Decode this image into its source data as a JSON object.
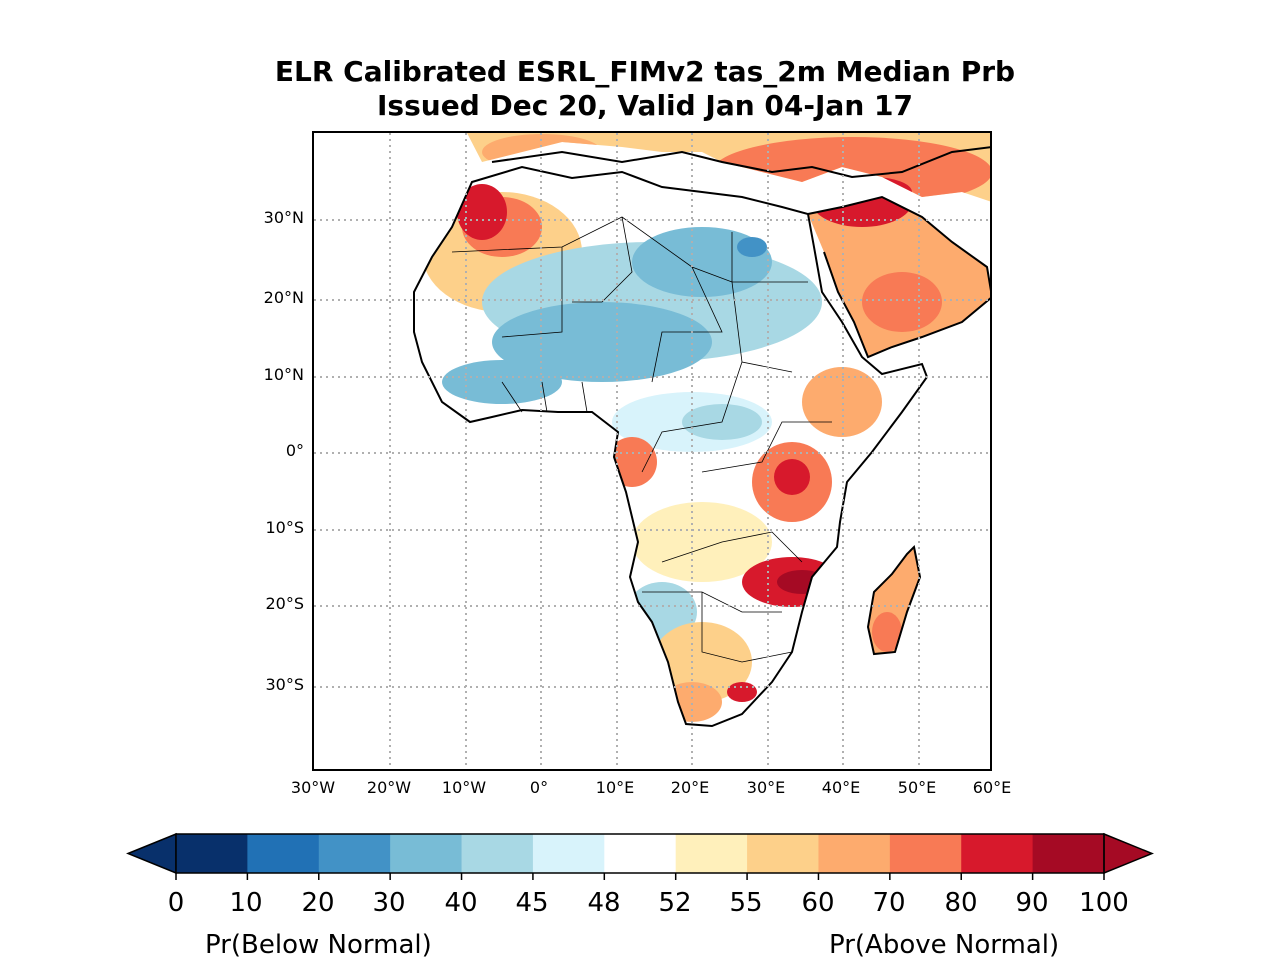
{
  "title": {
    "line1": "ELR Calibrated ESRL_FIMv2 tas_2m Median Prb",
    "line2": "Issued Dec 20, Valid Jan 04-Jan 17"
  },
  "map": {
    "region": "Africa",
    "lon_range": [
      -30,
      60
    ],
    "lat_range": [
      -42,
      42
    ],
    "lat_labels": [
      "30°N",
      "20°N",
      "10°N",
      "0°",
      "10°S",
      "20°S",
      "30°S"
    ],
    "lon_labels": [
      "30°W",
      "20°W",
      "10°W",
      "0°",
      "10°E",
      "20°E",
      "30°E",
      "40°E",
      "50°E",
      "60°E"
    ],
    "grid": "dotted"
  },
  "colorbar": {
    "ticks": [
      "0",
      "10",
      "20",
      "30",
      "40",
      "45",
      "48",
      "52",
      "55",
      "60",
      "70",
      "80",
      "90",
      "100"
    ],
    "colors": [
      "#08306b",
      "#2171b5",
      "#4292c6",
      "#78bcd6",
      "#a8d8e4",
      "#d8f3fb",
      "#ffffff",
      "#fff0bb",
      "#fdd08a",
      "#fdab6e",
      "#f87a55",
      "#d7192c",
      "#a50a24"
    ],
    "left_label": "Pr(Below Normal)",
    "right_label": "Pr(Above Normal)"
  }
}
